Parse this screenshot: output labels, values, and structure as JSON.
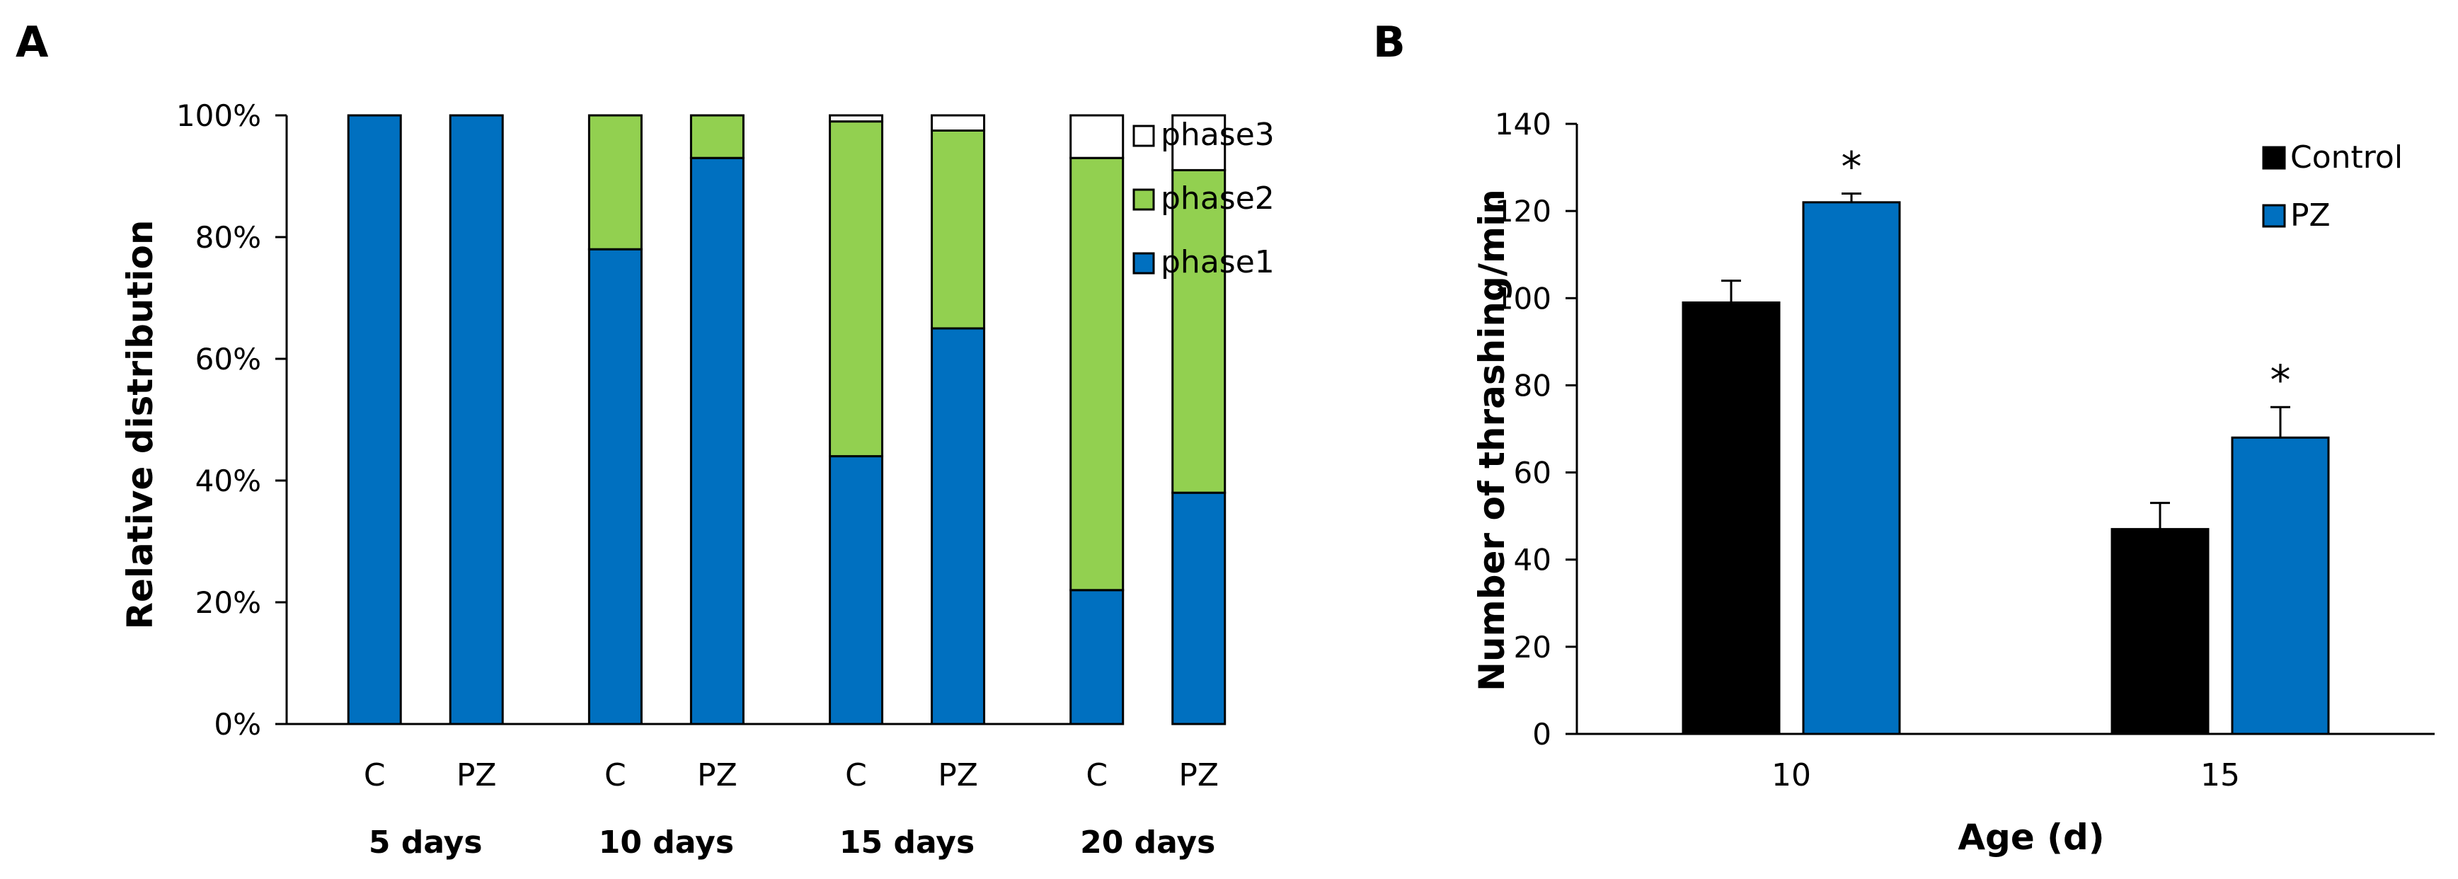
{
  "chart_data": [
    {
      "panel": "A",
      "type": "bar",
      "stacked": true,
      "ylabel": "Relative distribution",
      "ylim": [
        0,
        100
      ],
      "yticks": [
        "0%",
        "20%",
        "40%",
        "60%",
        "80%",
        "100%"
      ],
      "groups": [
        {
          "label": "5 days",
          "bars": [
            {
              "label": "C",
              "values": [
                100,
                0,
                0
              ]
            },
            {
              "label": "PZ",
              "values": [
                100,
                0,
                0
              ]
            }
          ]
        },
        {
          "label": "10 days",
          "bars": [
            {
              "label": "C",
              "values": [
                78,
                22,
                0
              ]
            },
            {
              "label": "PZ",
              "values": [
                93,
                7,
                0
              ]
            }
          ]
        },
        {
          "label": "15 days",
          "bars": [
            {
              "label": "C",
              "values": [
                44,
                55,
                1
              ]
            },
            {
              "label": "PZ",
              "values": [
                65,
                32.5,
                2.5
              ]
            }
          ]
        },
        {
          "label": "20 days",
          "bars": [
            {
              "label": "C",
              "values": [
                22,
                71,
                7
              ]
            },
            {
              "label": "PZ",
              "values": [
                38,
                53,
                9
              ]
            }
          ]
        }
      ],
      "series": [
        {
          "name": "phase1",
          "color": "#0070C0"
        },
        {
          "name": "phase2",
          "color": "#92D050"
        },
        {
          "name": "phase3",
          "color": "#FFFFFF"
        }
      ],
      "legend": [
        "phase3",
        "phase2",
        "phase1"
      ]
    },
    {
      "panel": "B",
      "type": "bar",
      "xlabel": "Age (d)",
      "ylabel": "Number of thrashing/min",
      "ylim": [
        0,
        140
      ],
      "yticks": [
        "0",
        "20",
        "40",
        "60",
        "80",
        "100",
        "120",
        "140"
      ],
      "categories": [
        "10",
        "15"
      ],
      "series": [
        {
          "name": "Control",
          "color": "#000000",
          "values": [
            99,
            47
          ],
          "errors": [
            5,
            6
          ]
        },
        {
          "name": "PZ",
          "color": "#0070C0",
          "values": [
            122,
            68
          ],
          "errors": [
            2,
            7
          ]
        }
      ],
      "annotations": [
        {
          "text": "*",
          "series": "PZ",
          "category": "10"
        },
        {
          "text": "*",
          "series": "PZ",
          "category": "15"
        }
      ]
    }
  ]
}
